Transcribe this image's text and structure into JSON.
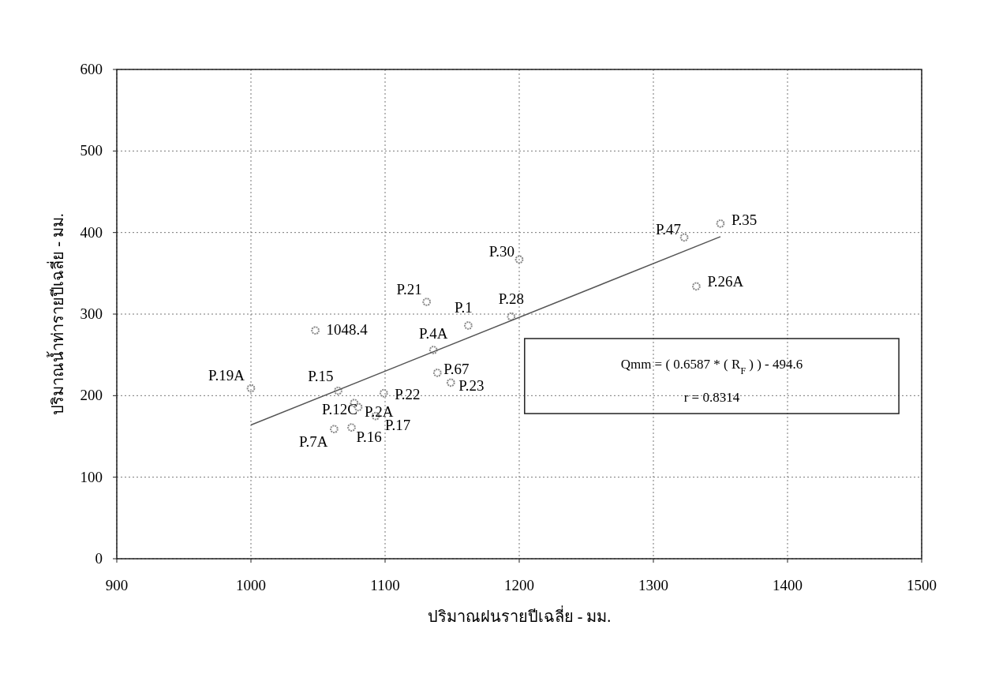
{
  "chart_data": {
    "type": "scatter",
    "xlabel": "ปริมาณฝนรายปีเฉลี่ย - มม.",
    "ylabel": "ปริมาณน้ำท่ารายปีเฉลี่ย - มม.",
    "xlim": [
      900,
      1500
    ],
    "xticks": [
      900,
      1000,
      1100,
      1200,
      1300,
      1400,
      1500
    ],
    "ylim": [
      0,
      600
    ],
    "yticks": [
      0,
      100,
      200,
      300,
      400,
      500,
      600
    ],
    "grid": true,
    "annotations": [
      "Qmm = ( 0.6587 * ( R$_{F}$ ) ) - 494.6",
      "r = 0.8314",
      {
        "text": "P.19A",
        "x": 1000,
        "y": 209
      },
      {
        "text": "1048.4",
        "x": 1048,
        "y": 280
      },
      {
        "text": "P.15",
        "x": 1065,
        "y": 206
      },
      {
        "text": "P.12C",
        "x": 1077,
        "y": 191
      },
      {
        "text": "P.2A",
        "x": 1080,
        "y": 186
      },
      {
        "text": "P.22",
        "x": 1099,
        "y": 203
      },
      {
        "text": "P.17",
        "x": 1093,
        "y": 175
      },
      {
        "text": "P.16",
        "x": 1075,
        "y": 161
      },
      {
        "text": "P.7A",
        "x": 1062,
        "y": 159
      },
      {
        "text": "P.4A",
        "x": 1136,
        "y": 256
      },
      {
        "text": "P.67",
        "x": 1139,
        "y": 228
      },
      {
        "text": "P.23",
        "x": 1149,
        "y": 216
      },
      {
        "text": "P.21",
        "x": 1131,
        "y": 315
      },
      {
        "text": "P.1",
        "x": 1162,
        "y": 286
      },
      {
        "text": "P.28",
        "x": 1194,
        "y": 297
      },
      {
        "text": "P.30",
        "x": 1200,
        "y": 367
      },
      {
        "text": "P.47",
        "x": 1323,
        "y": 394
      },
      {
        "text": "P.35",
        "x": 1350,
        "y": 411
      },
      {
        "text": "P.26A",
        "x": 1332,
        "y": 334
      }
    ],
    "series": [
      {
        "color": "#8a8a8a",
        "marker": "circle",
        "x": [
          1000,
          1048,
          1065,
          1077,
          1080,
          1099,
          1093,
          1075,
          1062,
          1136,
          1139,
          1149,
          1131,
          1162,
          1194,
          1200,
          1323,
          1350,
          1332
        ],
        "values": [
          209,
          280,
          206,
          191,
          186,
          203,
          175,
          161,
          159,
          256,
          228,
          216,
          315,
          286,
          297,
          367,
          394,
          411,
          334
        ]
      },
      {
        "type": "line",
        "color": "#555555",
        "marker": "none",
        "x": [
          1000,
          1350
        ],
        "values": [
          164,
          395
        ]
      }
    ]
  }
}
